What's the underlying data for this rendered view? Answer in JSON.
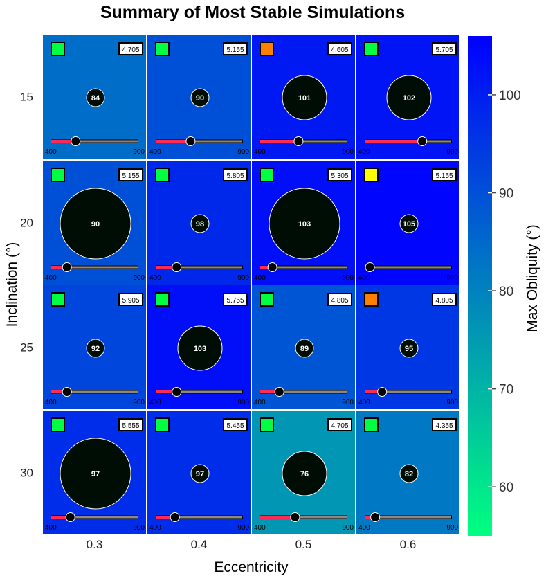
{
  "chart_data": {
    "type": "heatmap",
    "title": "Summary of Most Stable Simulations",
    "xlabel": "Eccentricity",
    "ylabel": "Inclination (°)",
    "x_categories": [
      "0.3",
      "0.4",
      "0.5",
      "0.6"
    ],
    "y_categories": [
      "15",
      "20",
      "25",
      "30"
    ],
    "colorbar": {
      "label": "Max Obliquity (°)",
      "range": [
        55,
        106
      ],
      "ticks": [
        60,
        70,
        80,
        90,
        100
      ],
      "tick_labels": [
        "60",
        "70",
        "80",
        "90",
        "100"
      ],
      "color_low": "#00ff80",
      "color_high": "#0000ff"
    },
    "slider_range": [
      400,
      900
    ],
    "slider_min_label": "400",
    "slider_max_label": "900",
    "status_colors": {
      "green": "#00ff40",
      "orange": "#ff7f00",
      "yellow": "#ffff00"
    },
    "cells": [
      {
        "inc": "15",
        "ecc": "0.3",
        "max_obliquity": 84,
        "box_value": "4.705",
        "status": "green",
        "slider_value": 540,
        "circle_size": "small"
      },
      {
        "inc": "15",
        "ecc": "0.4",
        "max_obliquity": 90,
        "box_value": "5.155",
        "status": "green",
        "slider_value": 600,
        "circle_size": "small"
      },
      {
        "inc": "15",
        "ecc": "0.5",
        "max_obliquity": 101,
        "box_value": "4.605",
        "status": "orange",
        "slider_value": 620,
        "circle_size": "medium"
      },
      {
        "inc": "15",
        "ecc": "0.6",
        "max_obliquity": 102,
        "box_value": "5.705",
        "status": "green",
        "slider_value": 730,
        "circle_size": "medium"
      },
      {
        "inc": "20",
        "ecc": "0.3",
        "max_obliquity": 90,
        "box_value": "5.155",
        "status": "green",
        "slider_value": 490,
        "circle_size": "large"
      },
      {
        "inc": "20",
        "ecc": "0.4",
        "max_obliquity": 98,
        "box_value": "5.805",
        "status": "green",
        "slider_value": 520,
        "circle_size": "small"
      },
      {
        "inc": "20",
        "ecc": "0.5",
        "max_obliquity": 103,
        "box_value": "5.305",
        "status": "green",
        "slider_value": 470,
        "circle_size": "large"
      },
      {
        "inc": "20",
        "ecc": "0.6",
        "max_obliquity": 105,
        "box_value": "5.155",
        "status": "yellow",
        "slider_value": 430,
        "circle_size": "small"
      },
      {
        "inc": "25",
        "ecc": "0.3",
        "max_obliquity": 92,
        "box_value": "5.905",
        "status": "green",
        "slider_value": 490,
        "circle_size": "small"
      },
      {
        "inc": "25",
        "ecc": "0.4",
        "max_obliquity": 103,
        "box_value": "5.755",
        "status": "green",
        "slider_value": 520,
        "circle_size": "medium"
      },
      {
        "inc": "25",
        "ecc": "0.5",
        "max_obliquity": 89,
        "box_value": "4.805",
        "status": "green",
        "slider_value": 510,
        "circle_size": "small"
      },
      {
        "inc": "25",
        "ecc": "0.6",
        "max_obliquity": 95,
        "box_value": "4.805",
        "status": "orange",
        "slider_value": 500,
        "circle_size": "small"
      },
      {
        "inc": "30",
        "ecc": "0.3",
        "max_obliquity": 97,
        "box_value": "5.555",
        "status": "green",
        "slider_value": 510,
        "circle_size": "large"
      },
      {
        "inc": "30",
        "ecc": "0.4",
        "max_obliquity": 97,
        "box_value": "5.455",
        "status": "green",
        "slider_value": 510,
        "circle_size": "small"
      },
      {
        "inc": "30",
        "ecc": "0.5",
        "max_obliquity": 76,
        "box_value": "4.705",
        "status": "green",
        "slider_value": 600,
        "circle_size": "medium"
      },
      {
        "inc": "30",
        "ecc": "0.6",
        "max_obliquity": 82,
        "box_value": "4.355",
        "status": "green",
        "slider_value": 460,
        "circle_size": "small"
      }
    ]
  }
}
